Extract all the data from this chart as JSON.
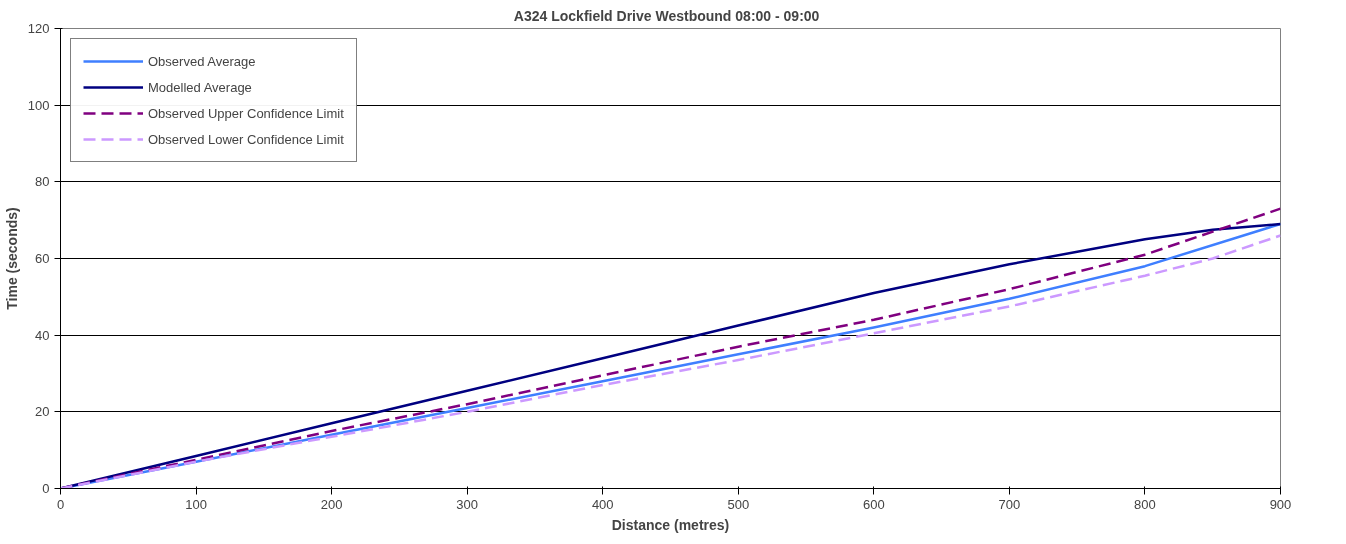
{
  "chart_data": {
    "type": "line",
    "title": "A324 Lockfield Drive Westbound  08:00  - 09:00",
    "xlabel": "Distance (metres)",
    "ylabel": "Time (seconds)",
    "xlim": [
      0,
      900
    ],
    "xticks": [
      0,
      100,
      200,
      300,
      400,
      500,
      600,
      700,
      800,
      900
    ],
    "ylim": [
      0,
      120
    ],
    "yticks": [
      0,
      20,
      40,
      60,
      80,
      100,
      120
    ],
    "grid": "y",
    "legend": "top left",
    "marker": "none",
    "series": [
      {
        "name": "Observed Average",
        "color": "#3f7fff",
        "line_style": "solid",
        "x": [
          0,
          100,
          200,
          300,
          400,
          500,
          600,
          700,
          800,
          900
        ],
        "values": [
          0,
          7,
          14,
          21,
          28,
          35,
          42,
          49.5,
          58,
          69
        ]
      },
      {
        "name": "Modelled Average",
        "color": "#000080",
        "line_style": "solid",
        "x": [
          0,
          100,
          200,
          300,
          400,
          500,
          600,
          700,
          800,
          850,
          900
        ],
        "values": [
          0,
          8.5,
          17,
          25.5,
          34,
          42.5,
          51,
          58.5,
          65,
          67.5,
          69
        ]
      },
      {
        "name": "Observed Upper Confidence Limit",
        "color": "#800080",
        "line_style": "dashed",
        "x": [
          0,
          100,
          200,
          300,
          400,
          500,
          600,
          700,
          800,
          900
        ],
        "values": [
          0,
          7.5,
          15,
          22,
          29.5,
          37,
          44,
          52,
          61,
          73
        ]
      },
      {
        "name": "Observed Lower Confidence Limit",
        "color": "#cc99ff",
        "line_style": "dashed",
        "x": [
          0,
          100,
          200,
          300,
          400,
          500,
          600,
          700,
          800,
          850,
          900
        ],
        "values": [
          0,
          7,
          13.5,
          20,
          27,
          33.5,
          40.5,
          47.5,
          55.5,
          60,
          66
        ]
      }
    ]
  }
}
